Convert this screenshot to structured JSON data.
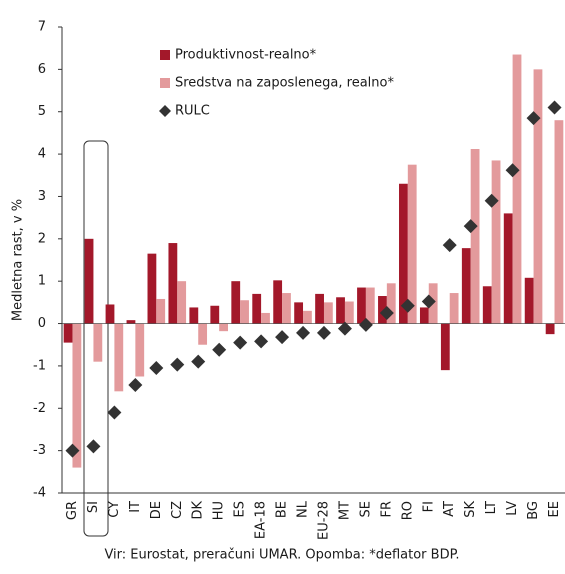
{
  "chart_data": {
    "type": "bar",
    "y_label": "Medletna rast, v %",
    "source": "Vir: Eurostat, preračuni UMAR. Opomba: *deflator BDP.",
    "categories": [
      "GR",
      "SI",
      "CY",
      "IT",
      "DE",
      "CZ",
      "DK",
      "HU",
      "ES",
      "EA-18",
      "BE",
      "NL",
      "EU-28",
      "MT",
      "SE",
      "FR",
      "RO",
      "FI",
      "AT",
      "SK",
      "LT",
      "LV",
      "BG",
      "EE"
    ],
    "series": [
      {
        "name": "Produktivnost-realno*",
        "color": "#a3182a",
        "kind": "bar",
        "values": [
          -0.45,
          2.0,
          0.45,
          0.08,
          1.65,
          1.9,
          0.38,
          0.42,
          1.0,
          0.7,
          1.02,
          0.5,
          0.7,
          0.62,
          0.85,
          0.65,
          3.3,
          0.38,
          -1.1,
          1.78,
          0.88,
          2.6,
          1.08,
          -0.25
        ]
      },
      {
        "name": "Sredstva na zaposlenega, realno*",
        "color": "#e39a9c",
        "kind": "bar",
        "values": [
          -3.4,
          -0.9,
          -1.6,
          -1.25,
          0.58,
          1.0,
          -0.5,
          -0.18,
          0.55,
          0.25,
          0.72,
          0.3,
          0.5,
          0.52,
          0.85,
          0.95,
          3.75,
          0.95,
          0.72,
          4.12,
          3.85,
          6.35,
          6.0,
          4.8
        ]
      },
      {
        "name": "RULC",
        "color": "#333333",
        "kind": "diamond",
        "values": [
          -3.0,
          -2.9,
          -2.1,
          -1.45,
          -1.05,
          -0.97,
          -0.9,
          -0.62,
          -0.45,
          -0.42,
          -0.32,
          -0.22,
          -0.22,
          -0.12,
          -0.03,
          0.25,
          0.42,
          0.52,
          1.85,
          2.3,
          2.9,
          3.62,
          4.85,
          5.1
        ]
      }
    ],
    "ylim": [
      -4,
      7
    ],
    "yticks": [
      -4,
      -3,
      -2,
      -1,
      0,
      1,
      2,
      3,
      4,
      5,
      6,
      7
    ],
    "grid": false
  }
}
